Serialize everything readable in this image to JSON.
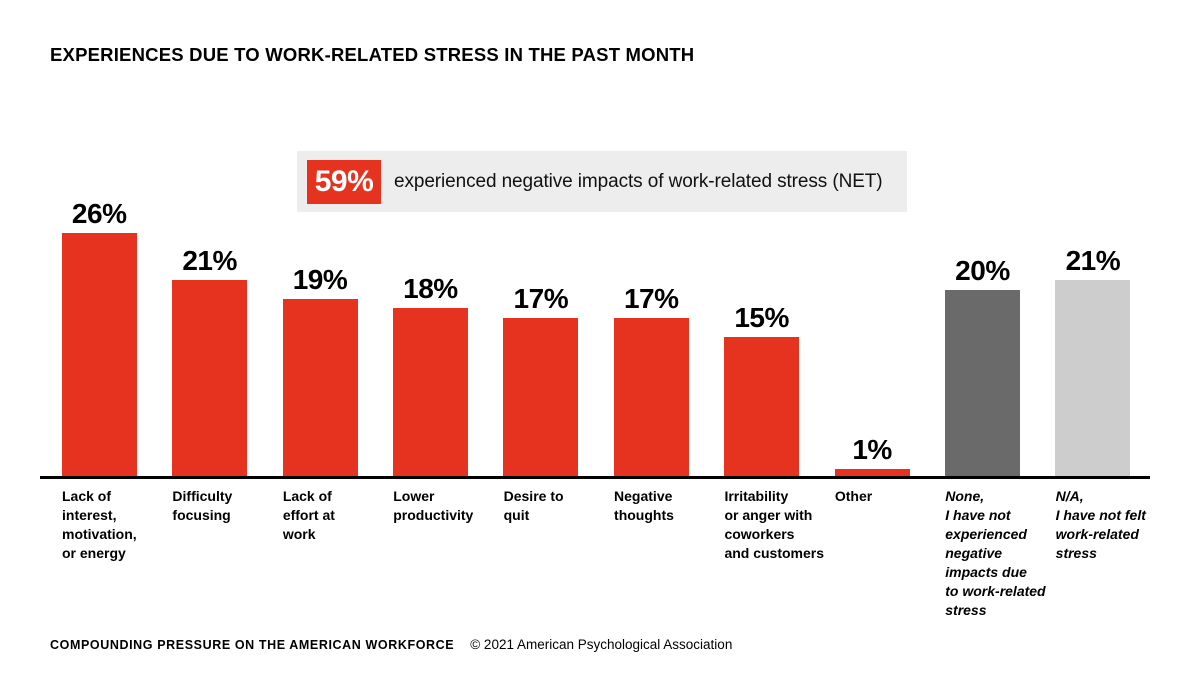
{
  "title": "EXPERIENCES DUE TO WORK-RELATED STRESS IN THE PAST MONTH",
  "callout": {
    "badge": "59%",
    "text": "experienced negative impacts of work-related stress (NET)"
  },
  "colors": {
    "red": "#E5331F",
    "dark_gray": "#6A6A6A",
    "light_gray": "#CDCDCD",
    "callout_bg": "#EDEDED",
    "axis": "#000000"
  },
  "chart_data": {
    "type": "bar",
    "title": "EXPERIENCES DUE TO WORK-RELATED STRESS IN THE PAST MONTH",
    "xlabel": "",
    "ylabel": "",
    "ylim": [
      0,
      28
    ],
    "grid": false,
    "legend_position": "none",
    "annotation": "59% experienced negative impacts of work-related stress (NET)",
    "categories": [
      "Lack of\ninterest,\nmotivation,\nor energy",
      "Difficulty\nfocusing",
      "Lack of\neffort at\nwork",
      "Lower\nproductivity",
      "Desire to\nquit",
      "Negative\nthoughts",
      "Irritability\nor anger with\ncoworkers\nand customers",
      "Other",
      "None,\nI have not\nexperienced\nnegative\nimpacts due\nto work-related\nstress",
      "N/A,\nI have not felt\nwork-related\nstress"
    ],
    "values": [
      26,
      21,
      19,
      18,
      17,
      17,
      15,
      1,
      20,
      21
    ],
    "value_labels": [
      "26%",
      "21%",
      "19%",
      "18%",
      "17%",
      "17%",
      "15%",
      "1%",
      "20%",
      "21%"
    ],
    "bar_colors": [
      "#E5331F",
      "#E5331F",
      "#E5331F",
      "#E5331F",
      "#E5331F",
      "#E5331F",
      "#E5331F",
      "#E5331F",
      "#6A6A6A",
      "#CDCDCD"
    ],
    "italic_labels": [
      false,
      false,
      false,
      false,
      false,
      false,
      false,
      false,
      true,
      true
    ]
  },
  "footer": {
    "report": "COMPOUNDING PRESSURE ON THE AMERICAN WORKFORCE",
    "copyright": "© 2021 American Psychological Association"
  }
}
